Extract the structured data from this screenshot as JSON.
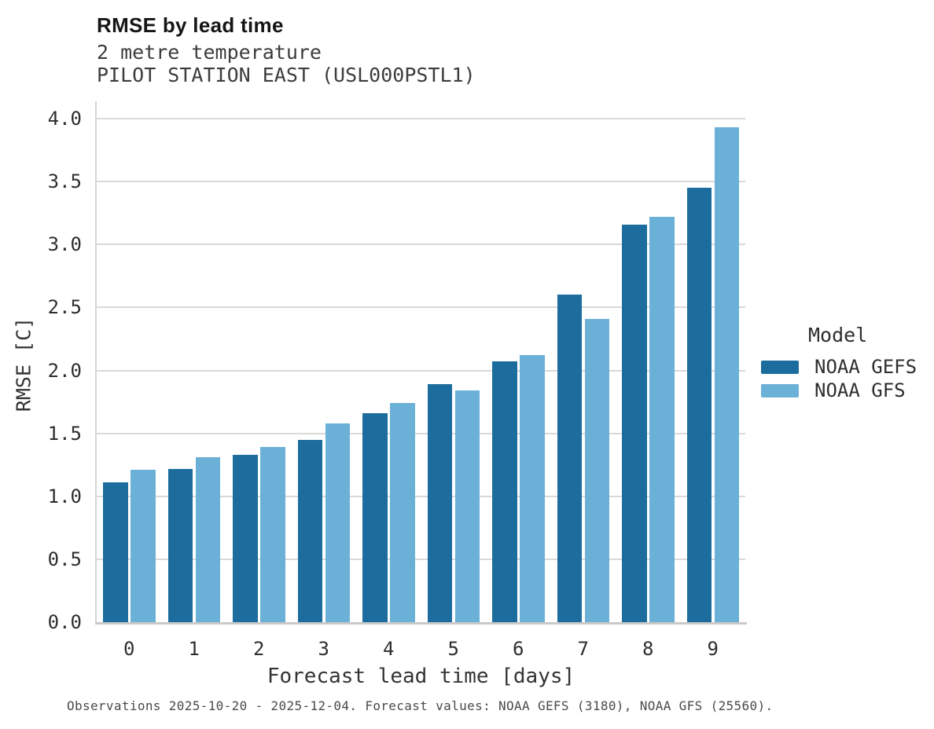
{
  "header": {
    "title": "RMSE by lead time",
    "subtitle1": "2 metre temperature",
    "subtitle2": "PILOT STATION EAST (USL000PSTL1)"
  },
  "chart_data": {
    "type": "bar",
    "title": "RMSE by lead time",
    "subtitle": [
      "2 metre temperature",
      "PILOT STATION EAST (USL000PSTL1)"
    ],
    "categories": [
      "0",
      "1",
      "2",
      "3",
      "4",
      "5",
      "6",
      "7",
      "8",
      "9"
    ],
    "series": [
      {
        "name": "NOAA GEFS",
        "color": "#1c6d9e",
        "values": [
          1.11,
          1.22,
          1.33,
          1.45,
          1.66,
          1.89,
          2.07,
          2.6,
          3.16,
          3.45
        ]
      },
      {
        "name": "NOAA GFS",
        "color": "#6bb0d7",
        "values": [
          1.21,
          1.31,
          1.39,
          1.58,
          1.74,
          1.84,
          2.12,
          2.41,
          3.22,
          3.93
        ]
      }
    ],
    "xlabel": "Forecast lead time [days]",
    "ylabel": "RMSE [C]",
    "ylim": [
      0.0,
      4.14
    ],
    "yticks": [
      "0.0",
      "0.5",
      "1.0",
      "1.5",
      "2.0",
      "2.5",
      "3.0",
      "3.5",
      "4.0"
    ],
    "grid": true,
    "legend_title": "Model",
    "legend_position": "right"
  },
  "legend": {
    "title": "Model",
    "items": [
      {
        "label": "NOAA GEFS",
        "color": "#1c6d9e"
      },
      {
        "label": "NOAA GFS",
        "color": "#6bb0d7"
      }
    ]
  },
  "footnote": "Observations 2025-10-20 - 2025-12-04. Forecast values: NOAA GEFS (3180), NOAA GFS (25560)."
}
